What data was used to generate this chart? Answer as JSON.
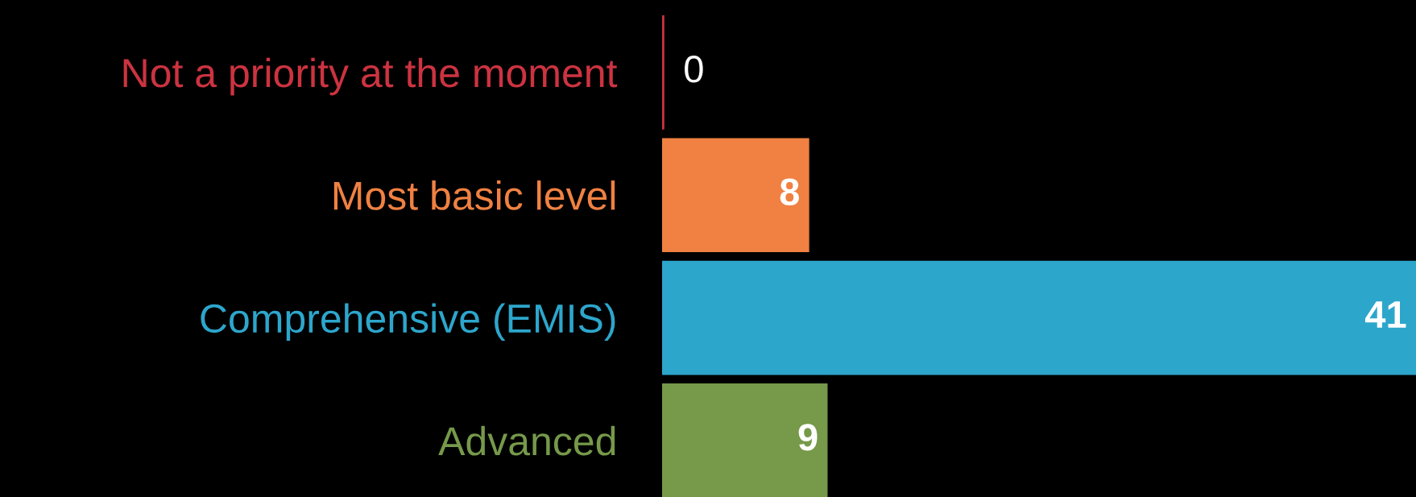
{
  "chart_data": {
    "type": "bar",
    "orientation": "horizontal",
    "categories": [
      "Not a priority at the moment",
      "Most basic level",
      "Comprehensive (EMIS)",
      "Advanced"
    ],
    "values": [
      0,
      8,
      41,
      9
    ],
    "colors": [
      "#cc3340",
      "#f08142",
      "#2da6cc",
      "#76994a"
    ],
    "xlim": [
      0,
      41
    ],
    "data_labels": true,
    "grid": false,
    "legend": false,
    "tick_labels": "y"
  }
}
